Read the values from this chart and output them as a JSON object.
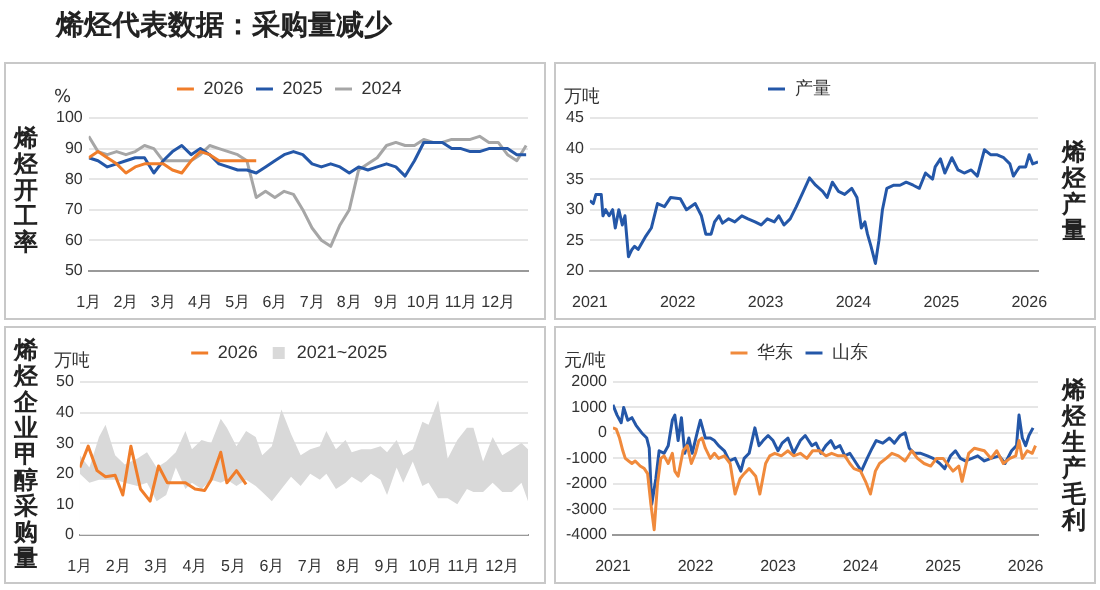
{
  "chart_data": [
    {
      "type": "other",
      "title": "烯烃代表数据：采购量减少"
    },
    {
      "type": "line",
      "title": "烯烃开工率",
      "ylabel": "%",
      "legend": "top",
      "grid": "y",
      "x": [
        1,
        1.25,
        1.5,
        1.75,
        2,
        2.25,
        2.5,
        2.75,
        3,
        3.25,
        3.5,
        3.75,
        4,
        4.25,
        4.5,
        4.75,
        5,
        5.25,
        5.5,
        5.75,
        6,
        6.25,
        6.5,
        6.75,
        7,
        7.25,
        7.5,
        7.75,
        8,
        8.25,
        8.5,
        8.75,
        9,
        9.25,
        9.5,
        9.75,
        10,
        10.25,
        10.5,
        10.75,
        11,
        11.25,
        11.5,
        11.75,
        12,
        12.25,
        12.5,
        12.75
      ],
      "xlim": [
        1,
        12.8
      ],
      "xticks": [
        {
          "value": 1,
          "label": "1月"
        },
        {
          "value": 2,
          "label": "2月"
        },
        {
          "value": 3,
          "label": "3月"
        },
        {
          "value": 4,
          "label": "4月"
        },
        {
          "value": 5,
          "label": "5月"
        },
        {
          "value": 6,
          "label": "6月"
        },
        {
          "value": 7,
          "label": "7月"
        },
        {
          "value": 8,
          "label": "8月"
        },
        {
          "value": 9,
          "label": "9月"
        },
        {
          "value": 10,
          "label": "10月"
        },
        {
          "value": 11,
          "label": "11月"
        },
        {
          "value": 12,
          "label": "12月"
        }
      ],
      "ylim": [
        50,
        100
      ],
      "yticks": [
        50,
        60,
        70,
        80,
        90,
        100
      ],
      "series": [
        {
          "name": "2026",
          "color": "#f07d2a",
          "values": [
            87,
            89,
            87,
            85,
            82,
            84,
            85,
            85,
            85,
            83,
            82,
            86,
            89,
            88,
            86,
            86,
            86,
            86,
            86,
            null,
            null,
            null,
            null,
            null,
            null,
            null,
            null,
            null,
            null,
            null,
            null,
            null,
            null,
            null,
            null,
            null,
            null,
            null,
            null,
            null,
            null,
            null,
            null,
            null,
            null,
            null,
            null,
            null
          ]
        },
        {
          "name": "2025",
          "color": "#2457a8",
          "values": [
            87,
            86,
            84,
            85,
            86,
            87,
            87,
            82,
            86,
            89,
            91,
            88,
            90,
            88,
            85,
            84,
            83,
            83,
            82,
            84,
            86,
            88,
            89,
            88,
            85,
            84,
            85,
            84,
            82,
            84,
            83,
            84,
            85,
            84,
            81,
            86,
            92,
            92,
            92,
            90,
            90,
            89,
            89,
            90,
            90,
            90,
            88,
            88
          ]
        },
        {
          "name": "2024",
          "color": "#a6a6a6",
          "values": [
            94,
            89,
            88,
            89,
            88,
            89,
            91,
            90,
            86,
            86,
            86,
            86,
            88,
            91,
            90,
            89,
            88,
            86,
            74,
            76,
            74,
            76,
            75,
            70,
            64,
            60,
            58,
            65,
            70,
            83,
            85,
            87,
            91,
            92,
            91,
            91,
            93,
            92,
            92,
            93,
            93,
            93,
            94,
            92,
            92,
            88,
            86,
            91
          ]
        }
      ]
    },
    {
      "type": "line",
      "y2label": "烯烃产量",
      "ylabel": "万吨",
      "legend": "top",
      "grid": "y",
      "xlim": [
        2021,
        2026.1
      ],
      "xticks": [
        2021,
        2022,
        2023,
        2024,
        2025,
        2026
      ],
      "ylim": [
        20,
        45
      ],
      "yticks": [
        20,
        25,
        30,
        35,
        40,
        45
      ],
      "series": [
        {
          "name": "产量",
          "color": "#2457a8",
          "x": [
            2021.0,
            2021.04,
            2021.07,
            2021.13,
            2021.15,
            2021.18,
            2021.22,
            2021.26,
            2021.29,
            2021.33,
            2021.37,
            2021.4,
            2021.44,
            2021.48,
            2021.51,
            2021.55,
            2021.63,
            2021.7,
            2021.77,
            2021.85,
            2021.92,
            2022.03,
            2022.1,
            2022.2,
            2022.27,
            2022.32,
            2022.38,
            2022.42,
            2022.47,
            2022.51,
            2022.58,
            2022.65,
            2022.73,
            2022.8,
            2022.88,
            2022.95,
            2023.02,
            2023.1,
            2023.15,
            2023.21,
            2023.28,
            2023.35,
            2023.43,
            2023.5,
            2023.57,
            2023.65,
            2023.7,
            2023.76,
            2023.83,
            2023.9,
            2023.98,
            2024.04,
            2024.09,
            2024.13,
            2024.16,
            2024.2,
            2024.25,
            2024.29,
            2024.33,
            2024.38,
            2024.46,
            2024.53,
            2024.6,
            2024.68,
            2024.75,
            2024.82,
            2024.9,
            2024.93,
            2024.99,
            2025.04,
            2025.12,
            2025.19,
            2025.26,
            2025.34,
            2025.41,
            2025.49,
            2025.56,
            2025.63,
            2025.71,
            2025.78,
            2025.82,
            2025.89,
            2025.96,
            2026.0,
            2026.04,
            2026.1
          ],
          "values": [
            31.5,
            31,
            32.5,
            32.5,
            29,
            30,
            29,
            30,
            27,
            30,
            27.5,
            29,
            22.3,
            23.5,
            24,
            23.5,
            25.5,
            27,
            31,
            30.5,
            32,
            31.8,
            30,
            31,
            29,
            26,
            26,
            28,
            29,
            27.8,
            28.5,
            28,
            29,
            28.5,
            28,
            27.5,
            28.5,
            28,
            29,
            27.5,
            28.5,
            30.5,
            33,
            35.2,
            34,
            33,
            32,
            34.5,
            33,
            32.5,
            33.5,
            32,
            27,
            28,
            26,
            24,
            21.2,
            25,
            30,
            33.5,
            34,
            34,
            34.5,
            34,
            33.5,
            36,
            35,
            37,
            38.3,
            36,
            38.5,
            36.5,
            36,
            36.5,
            35.5,
            39.8,
            39,
            39,
            38.5,
            37.5,
            35.5,
            37,
            37,
            39,
            37.5,
            37.8
          ]
        }
      ]
    },
    {
      "type": "line",
      "title": "烯烃企业甲醇采购量",
      "ylabel": "万吨",
      "legend": "top",
      "grid": "y",
      "xlim": [
        1,
        12.67
      ],
      "xticks": [
        {
          "value": 1,
          "label": "1月"
        },
        {
          "value": 2,
          "label": "2月"
        },
        {
          "value": 3,
          "label": "3月"
        },
        {
          "value": 4,
          "label": "4月"
        },
        {
          "value": 5,
          "label": "5月"
        },
        {
          "value": 6,
          "label": "6月"
        },
        {
          "value": 7,
          "label": "7月"
        },
        {
          "value": 8,
          "label": "8月"
        },
        {
          "value": 9,
          "label": "9月"
        },
        {
          "value": 10,
          "label": "10月"
        },
        {
          "value": 11,
          "label": "11月"
        },
        {
          "value": 12,
          "label": "12月"
        }
      ],
      "ylim": [
        0,
        50
      ],
      "yticks": [
        0,
        10,
        20,
        30,
        40,
        50
      ],
      "series": [
        {
          "name": "2021~2025",
          "type": "area",
          "color": "#d9d9d9",
          "x": [
            1.0,
            1.25,
            1.5,
            1.67,
            1.92,
            2.17,
            2.5,
            2.75,
            3.0,
            3.25,
            3.5,
            3.75,
            3.92,
            4.17,
            4.42,
            4.67,
            4.83,
            5.08,
            5.33,
            5.58,
            5.75,
            6.0,
            6.25,
            6.5,
            6.75,
            7.0,
            7.25,
            7.42,
            7.67,
            7.92,
            8.08,
            8.33,
            8.58,
            8.83,
            9.0,
            9.25,
            9.42,
            9.67,
            9.92,
            10.08,
            10.33,
            10.58,
            10.83,
            11.08,
            11.25,
            11.5,
            11.75,
            12.0,
            12.25,
            12.5,
            12.67
          ],
          "values": [
            26,
            22,
            32,
            36,
            26,
            23,
            25,
            27,
            22,
            24,
            27,
            34,
            28,
            31,
            30,
            38,
            35,
            29,
            34,
            32,
            26,
            29,
            41,
            33,
            26,
            28,
            29,
            34,
            28,
            31,
            27,
            28,
            28,
            29,
            27,
            31,
            26,
            28,
            37,
            36,
            44,
            25,
            31,
            35,
            35,
            24,
            32,
            26,
            28,
            30,
            28
          ]
        },
        {
          "type": "area",
          "color": "#ffffff",
          "x": [
            1.0,
            1.25,
            1.5,
            1.67,
            1.92,
            2.17,
            2.5,
            2.75,
            3.0,
            3.25,
            3.5,
            3.75,
            3.92,
            4.17,
            4.42,
            4.67,
            4.83,
            5.08,
            5.33,
            5.58,
            5.75,
            6.0,
            6.25,
            6.5,
            6.75,
            7.0,
            7.25,
            7.42,
            7.67,
            7.92,
            8.08,
            8.33,
            8.58,
            8.83,
            9.0,
            9.25,
            9.42,
            9.67,
            9.92,
            10.08,
            10.33,
            10.58,
            10.83,
            11.08,
            11.25,
            11.5,
            11.75,
            12.0,
            12.25,
            12.5,
            12.67
          ],
          "values": [
            20,
            17,
            18,
            18,
            18,
            17,
            16,
            17,
            11,
            13,
            22,
            15,
            17,
            15,
            18,
            17,
            18,
            16,
            18,
            16,
            14,
            11,
            15,
            19,
            16,
            20,
            18,
            20,
            15,
            17,
            19,
            17,
            20,
            18,
            13,
            22,
            17,
            24,
            16,
            17,
            12,
            12,
            10,
            15,
            14,
            14,
            17,
            14,
            14,
            17,
            11
          ]
        },
        {
          "name": "2026",
          "color": "#f07d2a",
          "x": [
            1.0,
            1.22,
            1.45,
            1.67,
            1.92,
            2.12,
            2.33,
            2.58,
            2.83,
            3.05,
            3.28,
            3.5,
            3.75,
            4.0,
            4.25,
            4.42,
            4.67,
            4.83,
            5.08,
            5.33
          ],
          "values": [
            22,
            29,
            21,
            19,
            19.5,
            13,
            29,
            15,
            11,
            22.5,
            17,
            17,
            17,
            15,
            14.5,
            18,
            27,
            17,
            21,
            16.5
          ]
        }
      ]
    },
    {
      "type": "line",
      "y2label": "烯烃生产毛利",
      "ylabel": "元/吨",
      "legend": "top",
      "grid": "y",
      "xlim": [
        2021,
        2026.15
      ],
      "xticks": [
        2021,
        2022,
        2023,
        2024,
        2025,
        2026
      ],
      "ylim": [
        -4000,
        2000
      ],
      "yticks": [
        -4000,
        -3000,
        -2000,
        -1000,
        0,
        1000,
        2000
      ],
      "series": [
        {
          "name": "华东",
          "color": "#f08a3c",
          "x": [
            2021.0,
            2021.04,
            2021.08,
            2021.12,
            2021.15,
            2021.19,
            2021.23,
            2021.27,
            2021.33,
            2021.38,
            2021.42,
            2021.46,
            2021.5,
            2021.54,
            2021.58,
            2021.62,
            2021.67,
            2021.72,
            2021.75,
            2021.79,
            2021.85,
            2021.9,
            2021.95,
            2022.0,
            2022.04,
            2022.08,
            2022.12,
            2022.18,
            2022.23,
            2022.28,
            2022.35,
            2022.42,
            2022.48,
            2022.54,
            2022.59,
            2022.65,
            2022.73,
            2022.78,
            2022.85,
            2022.9,
            2022.96,
            2023.04,
            2023.12,
            2023.19,
            2023.27,
            2023.35,
            2023.42,
            2023.5,
            2023.58,
            2023.65,
            2023.73,
            2023.81,
            2023.87,
            2023.92,
            2024.0,
            2024.06,
            2024.12,
            2024.18,
            2024.23,
            2024.31,
            2024.38,
            2024.46,
            2024.54,
            2024.62,
            2024.69,
            2024.77,
            2024.85,
            2024.92,
            2025.0,
            2025.12,
            2025.19,
            2025.23,
            2025.31,
            2025.38,
            2025.5,
            2025.58,
            2025.65,
            2025.73,
            2025.81,
            2025.88,
            2025.92,
            2025.96,
            2026.02,
            2026.08,
            2026.12
          ],
          "values": [
            200,
            150,
            -200,
            -700,
            -1000,
            -1100,
            -1200,
            -1100,
            -1300,
            -1400,
            -1600,
            -2800,
            -3800,
            -2000,
            -1000,
            -900,
            -1200,
            -800,
            -1500,
            -1700,
            -700,
            -500,
            -1200,
            -800,
            -300,
            -200,
            -600,
            -1000,
            -800,
            -1000,
            -900,
            -1200,
            -2400,
            -1800,
            -1600,
            -1400,
            -1700,
            -2400,
            -1200,
            -900,
            -800,
            -900,
            -700,
            -900,
            -800,
            -1000,
            -700,
            -700,
            -900,
            -800,
            -900,
            -900,
            -1200,
            -1400,
            -1500,
            -1900,
            -2400,
            -1500,
            -1200,
            -1000,
            -800,
            -900,
            -1100,
            -700,
            -1000,
            -1200,
            -1300,
            -1000,
            -1000,
            -1500,
            -1300,
            -1900,
            -800,
            -600,
            -700,
            -1000,
            -700,
            -1200,
            -1000,
            -900,
            -300,
            -1000,
            -700,
            -800,
            -500
          ]
        },
        {
          "name": "山东",
          "color": "#2457a8",
          "x": [
            2021.0,
            2021.05,
            2021.1,
            2021.13,
            2021.18,
            2021.23,
            2021.28,
            2021.35,
            2021.41,
            2021.44,
            2021.47,
            2021.52,
            2021.56,
            2021.62,
            2021.67,
            2021.72,
            2021.75,
            2021.79,
            2021.83,
            2021.87,
            2021.92,
            2021.96,
            2022.02,
            2022.06,
            2022.12,
            2022.18,
            2022.23,
            2022.28,
            2022.35,
            2022.41,
            2022.48,
            2022.55,
            2022.59,
            2022.65,
            2022.72,
            2022.77,
            2022.82,
            2022.88,
            2022.94,
            2023.0,
            2023.05,
            2023.12,
            2023.19,
            2023.27,
            2023.33,
            2023.41,
            2023.46,
            2023.52,
            2023.58,
            2023.64,
            2023.69,
            2023.75,
            2023.81,
            2023.87,
            2023.95,
            2024.01,
            2024.08,
            2024.14,
            2024.19,
            2024.27,
            2024.35,
            2024.41,
            2024.48,
            2024.54,
            2024.59,
            2024.65,
            2024.73,
            2024.81,
            2024.88,
            2024.96,
            2025.02,
            2025.09,
            2025.15,
            2025.21,
            2025.27,
            2025.35,
            2025.42,
            2025.5,
            2025.58,
            2025.68,
            2025.75,
            2025.83,
            2025.89,
            2025.92,
            2025.96,
            2026.0,
            2026.04,
            2026.09
          ],
          "values": [
            1100,
            700,
            400,
            1000,
            500,
            600,
            300,
            0,
            -200,
            -600,
            -2800,
            -1800,
            -700,
            -800,
            -500,
            500,
            700,
            -300,
            600,
            -800,
            -200,
            -800,
            0,
            500,
            -200,
            -200,
            -300,
            -500,
            -700,
            -1100,
            -1000,
            -1500,
            -1000,
            -800,
            200,
            -500,
            -300,
            -100,
            -300,
            -700,
            -400,
            -200,
            -800,
            -300,
            -100,
            -500,
            -400,
            -800,
            -500,
            -300,
            -600,
            -500,
            -900,
            -800,
            -1200,
            -1500,
            -1000,
            -600,
            -300,
            -400,
            -200,
            -400,
            -100,
            0,
            -600,
            -800,
            -800,
            -900,
            -1000,
            -1200,
            -1400,
            -900,
            -700,
            -1000,
            -1100,
            -1000,
            -900,
            -1100,
            -1000,
            -900,
            -1200,
            -700,
            -500,
            700,
            -200,
            -500,
            -100,
            200
          ]
        }
      ]
    }
  ]
}
